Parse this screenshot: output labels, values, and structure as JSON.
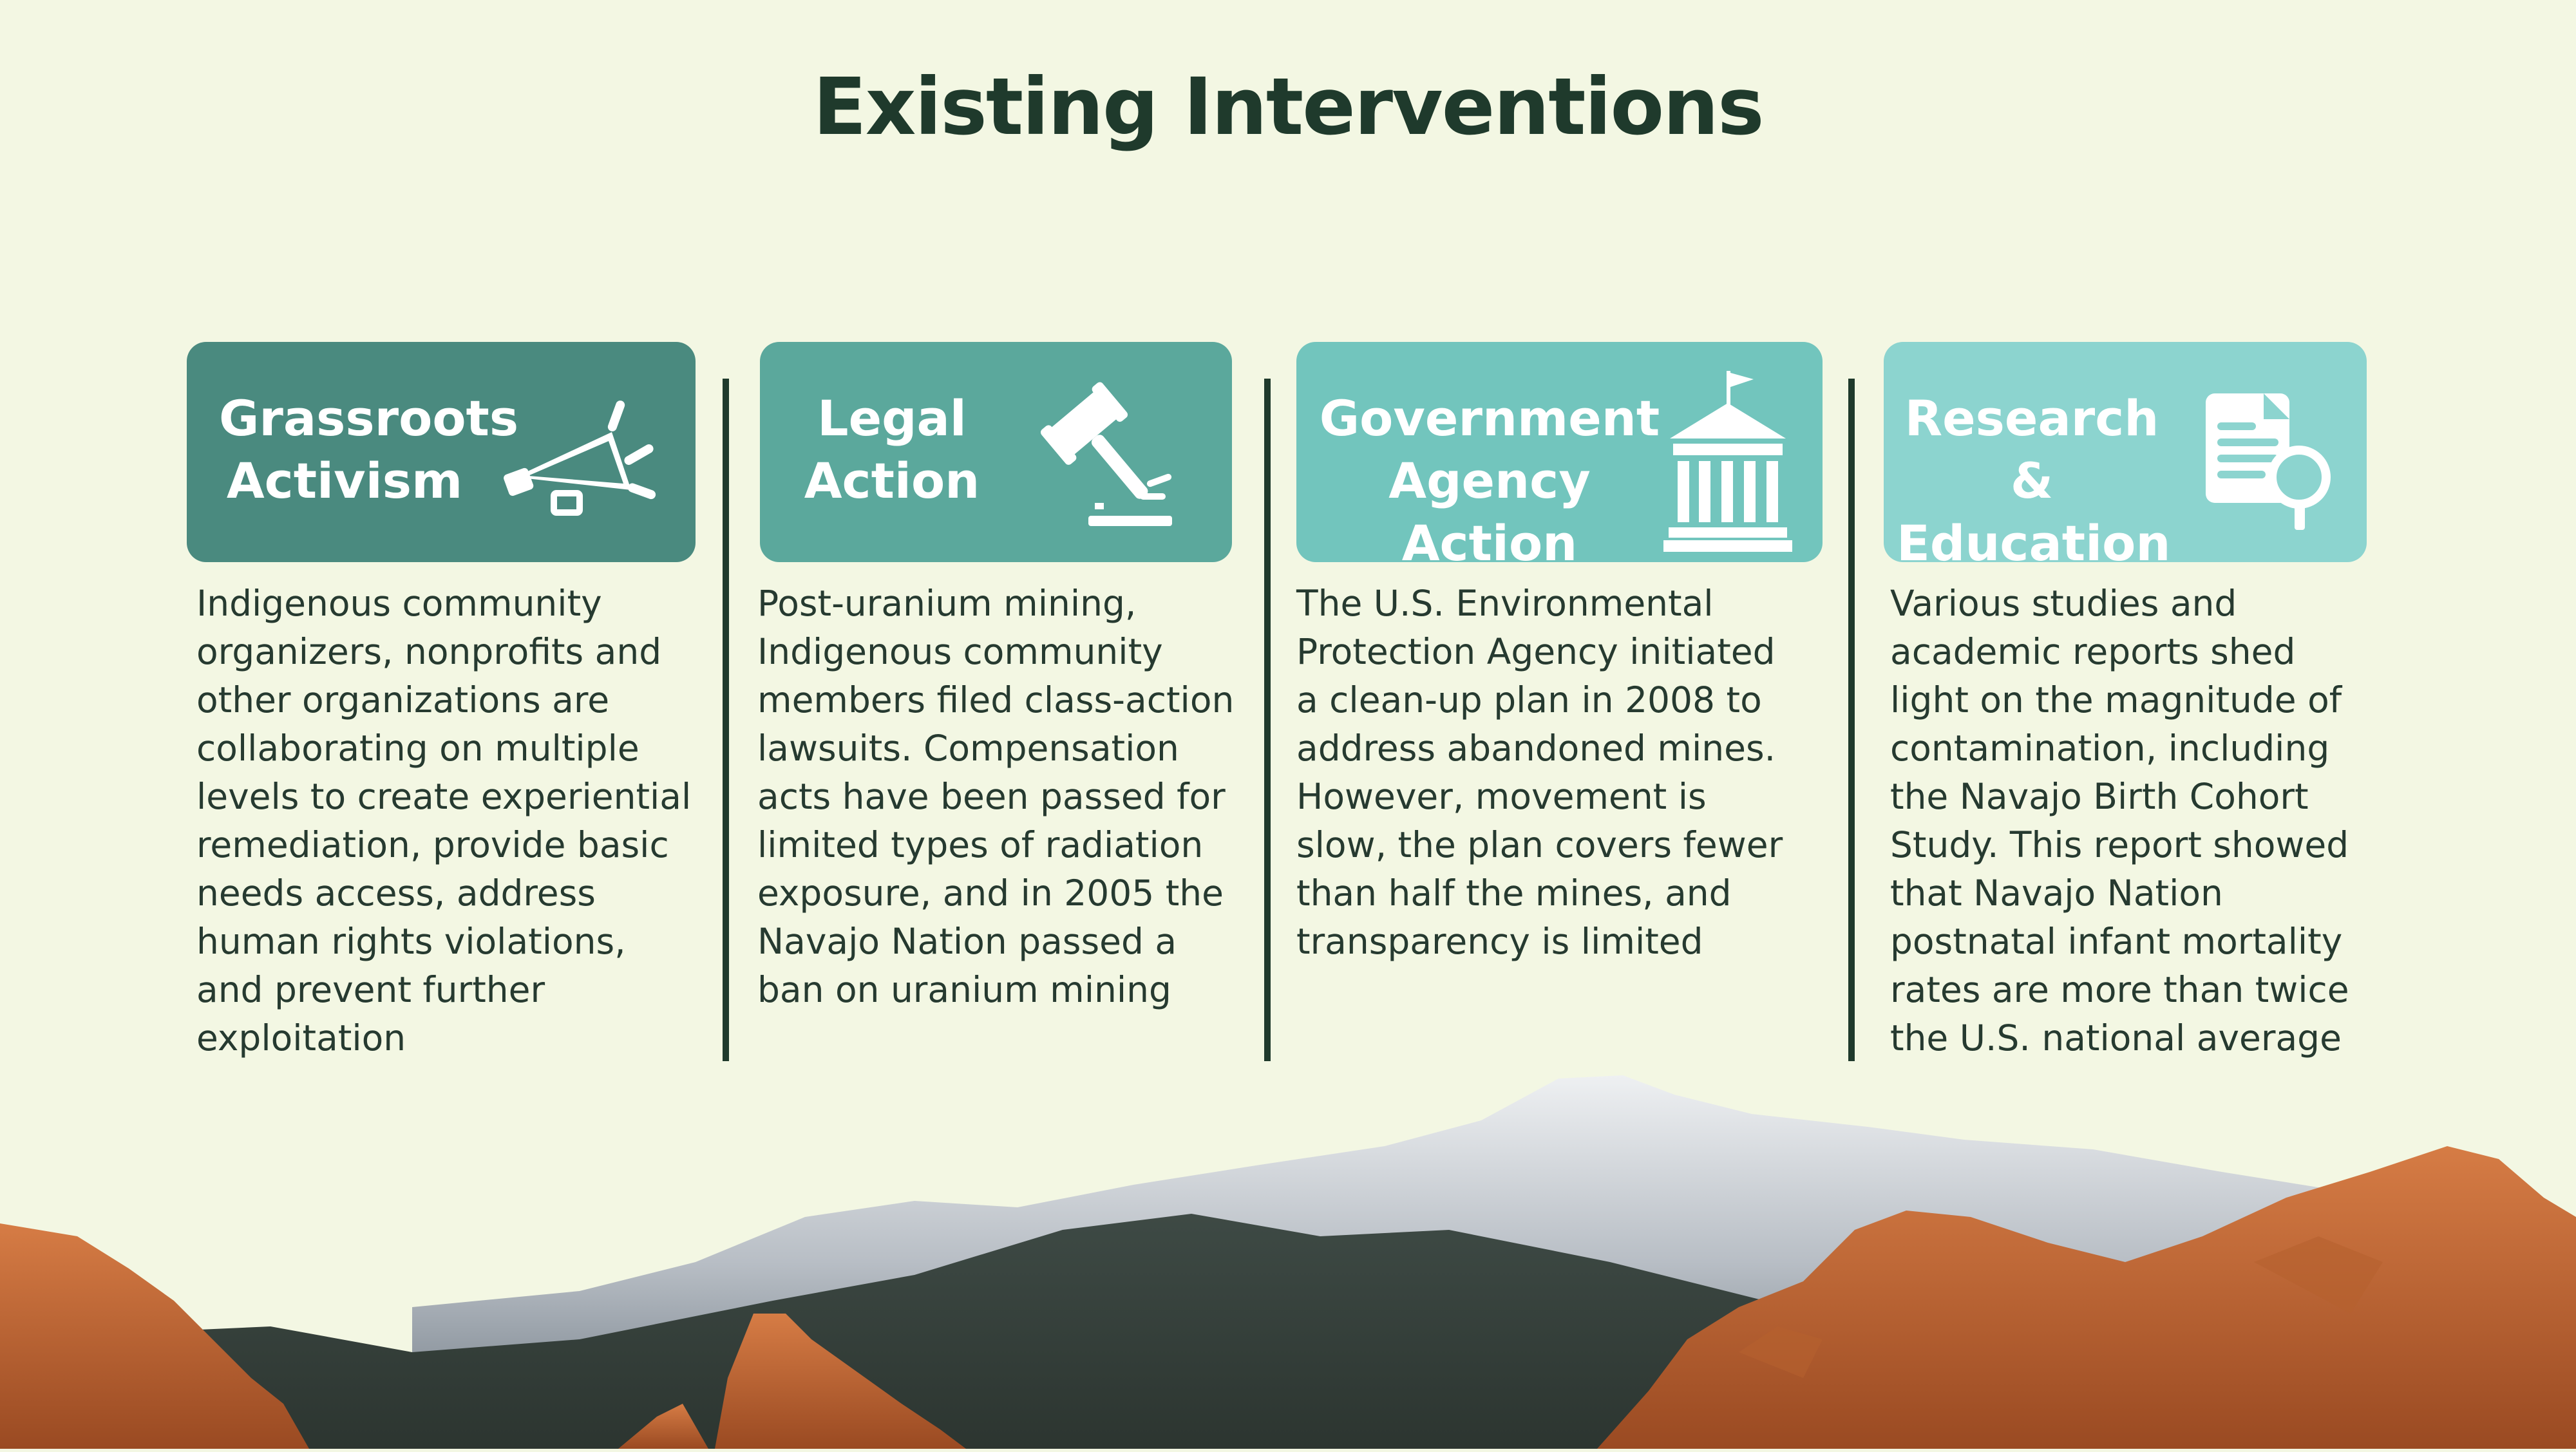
{
  "title": "Existing Interventions",
  "cards": [
    {
      "heading_line1": "Grassroots",
      "heading_line2": "Activism",
      "icon": "megaphone-icon",
      "color": "#4a8a7f",
      "body": "Indigenous community organizers, nonprofits and other organizations are collaborating on multiple levels to create experiential remediation, provide basic needs access, address human rights violations, and prevent further exploitation"
    },
    {
      "heading_line1": "Legal",
      "heading_line2": "Action",
      "icon": "gavel-icon",
      "color": "#5ba89c",
      "body": "Post-uranium mining, Indigenous community members filed class-action lawsuits. Compensation acts have been passed for limited types of radiation exposure, and in 2005 the Navajo Nation passed a ban on uranium mining"
    },
    {
      "heading_line1": "Government",
      "heading_line2": "Agency Action",
      "icon": "government-building-icon",
      "color": "#72c5bd",
      "body": "The U.S. Environmental Protection Agency initiated a clean-up plan in 2008 to address abandoned mines. However, movement is slow, the plan covers fewer than half the mines, and transparency is limited"
    },
    {
      "heading_line1": "Research &",
      "heading_line2": "Education",
      "icon": "document-search-icon",
      "color": "#8cd4cf",
      "body": "Various studies and academic reports shed light on the magnitude of contamination, including the Navajo Birth Cohort Study. This report showed that Navajo Nation postnatal infant mortality rates are more than twice the U.S. national average"
    }
  ],
  "colors": {
    "background": "#f3f7e3",
    "title": "#1f3a2c",
    "divider": "#1f3a2c",
    "text": "#263a30"
  }
}
